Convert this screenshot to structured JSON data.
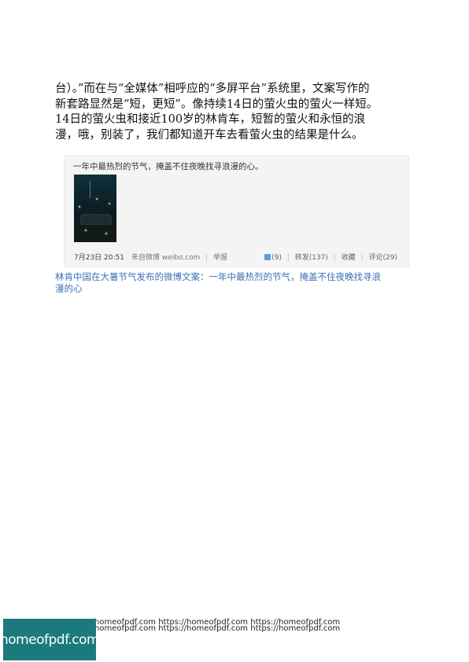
{
  "article": {
    "lines": [
      "台）。”而在与“全媒体”相呼应的“多屏平台”系统里，文案写作的",
      "新套路显然是“短，更短”。像持续14日的萤火虫的萤火一样短。",
      "14日的萤火虫和接近100岁的林肯车，短暂的萤火和永恒的浪",
      "漫，哦，别装了，我们都知道开车去看萤火虫的结果是什么。"
    ]
  },
  "weibo_post": {
    "text": "一年中最热烈的节气，掩盖不住夜晚找寻浪漫的心。",
    "time": "7月23日 20:51",
    "source": "来自微博 weibo.com",
    "report": "举报",
    "likes": "(9)",
    "repost": "转发(137)",
    "favorite": "收藏",
    "comment": "评论(29)",
    "like_icon": "thumbs-up-icon"
  },
  "caption": {
    "lines": [
      "林肯中国在大暑节气发布的微博文案：一年中最热烈的节气，掩盖不住夜晚找寻浪",
      "漫的心"
    ]
  },
  "footer": {
    "link_lines": [
      "homeofpdf.com https://homeofpdf.com https://homeofpdf.com",
      "homeofpdf.com https://homeofpdf.com https://homeofpdf.com"
    ],
    "logo_text": "homeofpdf.com",
    "logo_color": "#1b7a7e"
  }
}
